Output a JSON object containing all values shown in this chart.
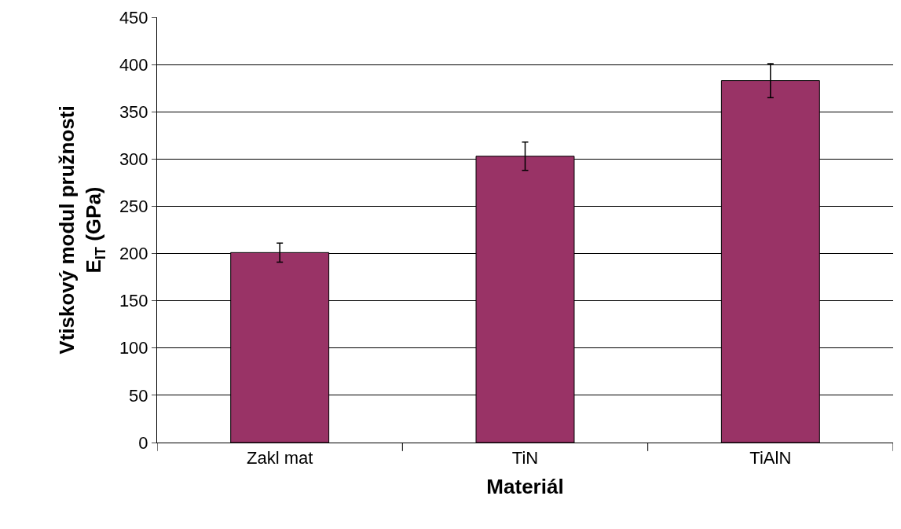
{
  "chart_data": {
    "type": "bar",
    "xlabel": "Materiál",
    "ylabel": "Vtiskový modul pružnosti\nE$_{IT}$ (GPa)",
    "categories": [
      "Zakl mat",
      "TiN",
      "TiAlN"
    ],
    "values": [
      201,
      303,
      383
    ],
    "errors": [
      10,
      15,
      18
    ],
    "color": "#993366",
    "ylim": [
      0,
      450
    ],
    "yticks": [
      0,
      50,
      100,
      150,
      200,
      250,
      300,
      350,
      400,
      450
    ],
    "grid": "y"
  }
}
